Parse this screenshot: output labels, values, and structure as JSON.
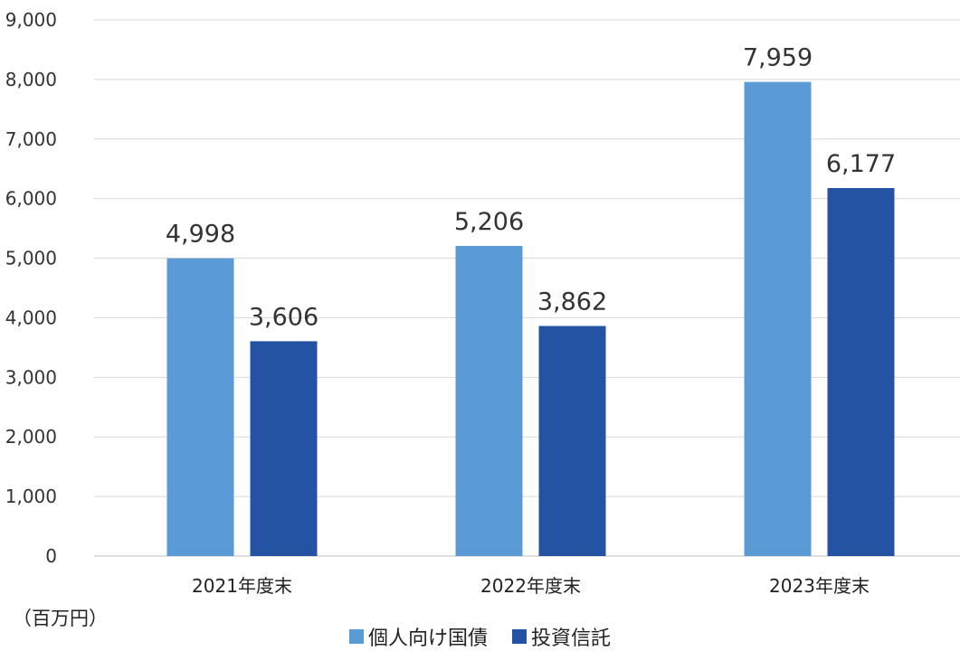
{
  "chart_data": {
    "type": "bar",
    "categories": [
      "2021年度末",
      "2022年度末",
      "2023年度末"
    ],
    "series": [
      {
        "name": "個人向け国債",
        "values": [
          4998,
          5206,
          7959
        ],
        "labels": [
          "4,998",
          "5,206",
          "7,959"
        ],
        "color": "#5b9bd5"
      },
      {
        "name": "投資信託",
        "values": [
          3606,
          3862,
          6177
        ],
        "labels": [
          "3,606",
          "3,862",
          "6,177"
        ],
        "color": "#2453a4"
      }
    ],
    "yticks": [
      "0",
      "1,000",
      "2,000",
      "3,000",
      "4,000",
      "5,000",
      "6,000",
      "7,000",
      "8,000",
      "9,000"
    ],
    "ylim": [
      0,
      9000
    ],
    "unit_label": "（百万円）",
    "grid": true,
    "legend_position": "bottom"
  }
}
